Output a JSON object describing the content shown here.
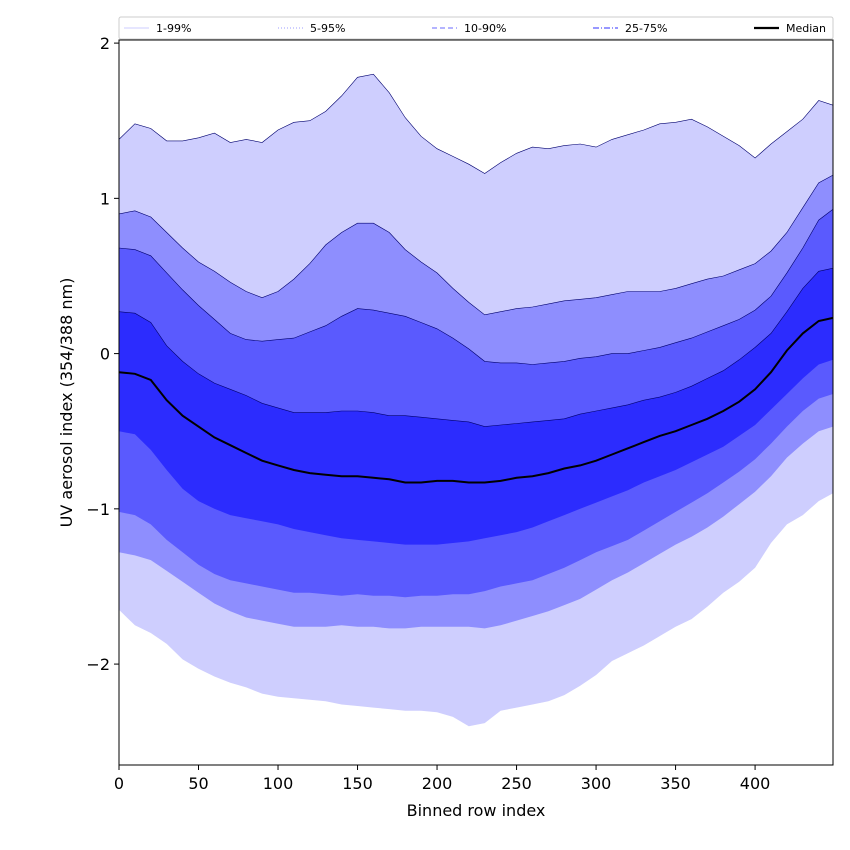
{
  "chart_data": {
    "type": "area",
    "xlabel": "Binned row index",
    "ylabel": "UV aerosol index (354/388 nm)",
    "xlim": [
      0,
      449
    ],
    "ylim": [
      -2.65,
      2.02
    ],
    "xticks": [
      0,
      50,
      100,
      150,
      200,
      250,
      300,
      350,
      400
    ],
    "yticks": [
      -2,
      -1,
      0,
      1,
      2
    ],
    "xtick_labels": [
      "0",
      "50",
      "100",
      "150",
      "200",
      "250",
      "300",
      "350",
      "400"
    ],
    "ytick_labels": [
      "−2",
      "−1",
      "0",
      "1",
      "2"
    ],
    "grid": false,
    "legend_position": "top",
    "legend": [
      {
        "label": "1-99%",
        "color": "#d8d8ff",
        "style": "solid"
      },
      {
        "label": "5-95%",
        "color": "#b0b0ff",
        "style": "dotted"
      },
      {
        "label": "10-90%",
        "color": "#8888ff",
        "style": "dashed"
      },
      {
        "label": "25-75%",
        "color": "#5a5aff",
        "style": "dashdot"
      },
      {
        "label": "Median",
        "color": "#000000",
        "style": "solid"
      }
    ],
    "x": [
      0,
      10,
      20,
      30,
      40,
      50,
      60,
      70,
      80,
      90,
      100,
      110,
      120,
      130,
      140,
      150,
      160,
      170,
      180,
      190,
      200,
      210,
      220,
      230,
      240,
      250,
      260,
      270,
      280,
      290,
      300,
      310,
      320,
      330,
      340,
      350,
      360,
      370,
      380,
      390,
      400,
      410,
      420,
      430,
      440,
      449
    ],
    "bands": [
      {
        "name": "1-99%",
        "color": "#cecefe",
        "upper": [
          1.38,
          1.48,
          1.45,
          1.37,
          1.37,
          1.39,
          1.42,
          1.36,
          1.38,
          1.36,
          1.44,
          1.49,
          1.5,
          1.56,
          1.66,
          1.78,
          1.8,
          1.68,
          1.52,
          1.4,
          1.32,
          1.27,
          1.22,
          1.16,
          1.23,
          1.29,
          1.33,
          1.32,
          1.34,
          1.35,
          1.33,
          1.38,
          1.41,
          1.44,
          1.48,
          1.49,
          1.51,
          1.46,
          1.4,
          1.34,
          1.26,
          1.35,
          1.43,
          1.51,
          1.63,
          1.6
        ],
        "lower": [
          -1.65,
          -1.75,
          -1.8,
          -1.87,
          -1.97,
          -2.03,
          -2.08,
          -2.12,
          -2.15,
          -2.19,
          -2.21,
          -2.22,
          -2.23,
          -2.24,
          -2.26,
          -2.27,
          -2.28,
          -2.29,
          -2.3,
          -2.3,
          -2.31,
          -2.34,
          -2.4,
          -2.38,
          -2.3,
          -2.28,
          -2.26,
          -2.24,
          -2.2,
          -2.14,
          -2.07,
          -1.98,
          -1.93,
          -1.88,
          -1.82,
          -1.76,
          -1.71,
          -1.63,
          -1.54,
          -1.47,
          -1.38,
          -1.22,
          -1.1,
          -1.04,
          -0.95,
          -0.9
        ]
      },
      {
        "name": "5-95%",
        "color": "#8e8efe",
        "upper": [
          0.9,
          0.92,
          0.88,
          0.78,
          0.68,
          0.59,
          0.53,
          0.46,
          0.4,
          0.36,
          0.4,
          0.48,
          0.58,
          0.7,
          0.78,
          0.84,
          0.84,
          0.78,
          0.67,
          0.59,
          0.52,
          0.42,
          0.33,
          0.25,
          0.27,
          0.29,
          0.3,
          0.32,
          0.34,
          0.35,
          0.36,
          0.38,
          0.4,
          0.4,
          0.4,
          0.42,
          0.45,
          0.48,
          0.5,
          0.54,
          0.58,
          0.66,
          0.78,
          0.94,
          1.1,
          1.15
        ],
        "lower": [
          -1.28,
          -1.3,
          -1.33,
          -1.4,
          -1.47,
          -1.54,
          -1.61,
          -1.66,
          -1.7,
          -1.72,
          -1.74,
          -1.76,
          -1.76,
          -1.76,
          -1.75,
          -1.76,
          -1.76,
          -1.77,
          -1.77,
          -1.76,
          -1.76,
          -1.76,
          -1.76,
          -1.77,
          -1.75,
          -1.72,
          -1.69,
          -1.66,
          -1.62,
          -1.58,
          -1.52,
          -1.46,
          -1.41,
          -1.35,
          -1.29,
          -1.23,
          -1.18,
          -1.12,
          -1.05,
          -0.97,
          -0.89,
          -0.79,
          -0.67,
          -0.58,
          -0.5,
          -0.47
        ]
      },
      {
        "name": "10-90%",
        "color": "#5a5afe",
        "upper": [
          0.68,
          0.67,
          0.63,
          0.52,
          0.41,
          0.31,
          0.22,
          0.13,
          0.09,
          0.08,
          0.09,
          0.1,
          0.14,
          0.18,
          0.24,
          0.29,
          0.28,
          0.26,
          0.24,
          0.2,
          0.16,
          0.1,
          0.03,
          -0.05,
          -0.06,
          -0.06,
          -0.07,
          -0.06,
          -0.05,
          -0.03,
          -0.02,
          0.0,
          0.0,
          0.02,
          0.04,
          0.07,
          0.1,
          0.14,
          0.18,
          0.22,
          0.28,
          0.37,
          0.52,
          0.68,
          0.86,
          0.93
        ],
        "lower": [
          -1.02,
          -1.04,
          -1.1,
          -1.2,
          -1.28,
          -1.36,
          -1.42,
          -1.46,
          -1.48,
          -1.5,
          -1.52,
          -1.54,
          -1.54,
          -1.55,
          -1.56,
          -1.55,
          -1.56,
          -1.56,
          -1.57,
          -1.56,
          -1.56,
          -1.55,
          -1.55,
          -1.53,
          -1.5,
          -1.48,
          -1.46,
          -1.42,
          -1.38,
          -1.33,
          -1.28,
          -1.24,
          -1.2,
          -1.14,
          -1.08,
          -1.02,
          -0.96,
          -0.9,
          -0.83,
          -0.76,
          -0.68,
          -0.58,
          -0.47,
          -0.37,
          -0.29,
          -0.26
        ]
      },
      {
        "name": "25-75%",
        "color": "#2c2cfe",
        "upper": [
          0.27,
          0.26,
          0.2,
          0.05,
          -0.05,
          -0.13,
          -0.19,
          -0.23,
          -0.27,
          -0.32,
          -0.35,
          -0.38,
          -0.38,
          -0.38,
          -0.37,
          -0.37,
          -0.38,
          -0.4,
          -0.4,
          -0.41,
          -0.42,
          -0.43,
          -0.44,
          -0.47,
          -0.46,
          -0.45,
          -0.44,
          -0.43,
          -0.42,
          -0.39,
          -0.37,
          -0.35,
          -0.33,
          -0.3,
          -0.28,
          -0.25,
          -0.21,
          -0.16,
          -0.11,
          -0.04,
          0.04,
          0.13,
          0.27,
          0.42,
          0.53,
          0.55
        ],
        "lower": [
          -0.5,
          -0.52,
          -0.62,
          -0.75,
          -0.87,
          -0.95,
          -1.0,
          -1.04,
          -1.06,
          -1.08,
          -1.1,
          -1.13,
          -1.15,
          -1.17,
          -1.19,
          -1.2,
          -1.21,
          -1.22,
          -1.23,
          -1.23,
          -1.23,
          -1.22,
          -1.21,
          -1.19,
          -1.17,
          -1.15,
          -1.12,
          -1.08,
          -1.04,
          -1.0,
          -0.96,
          -0.92,
          -0.88,
          -0.83,
          -0.79,
          -0.75,
          -0.7,
          -0.65,
          -0.6,
          -0.53,
          -0.46,
          -0.36,
          -0.26,
          -0.16,
          -0.07,
          -0.04
        ]
      }
    ],
    "series": [
      {
        "name": "Median",
        "color": "#000000",
        "values": [
          -0.12,
          -0.13,
          -0.17,
          -0.3,
          -0.4,
          -0.47,
          -0.54,
          -0.59,
          -0.64,
          -0.69,
          -0.72,
          -0.75,
          -0.77,
          -0.78,
          -0.79,
          -0.79,
          -0.8,
          -0.81,
          -0.83,
          -0.83,
          -0.82,
          -0.82,
          -0.83,
          -0.83,
          -0.82,
          -0.8,
          -0.79,
          -0.77,
          -0.74,
          -0.72,
          -0.69,
          -0.65,
          -0.61,
          -0.57,
          -0.53,
          -0.5,
          -0.46,
          -0.42,
          -0.37,
          -0.31,
          -0.23,
          -0.12,
          0.02,
          0.13,
          0.21,
          0.23
        ]
      }
    ]
  }
}
